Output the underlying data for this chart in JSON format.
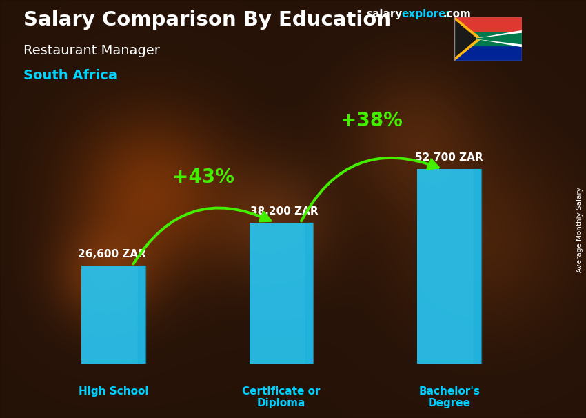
{
  "title_salary": "Salary Comparison By Education",
  "subtitle_job": "Restaurant Manager",
  "subtitle_country": "South Africa",
  "side_label": "Average Monthly Salary",
  "watermark_salary": "salary",
  "watermark_explorer": "explorer",
  "watermark_com": ".com",
  "categories": [
    "High School",
    "Certificate or\nDiploma",
    "Bachelor's\nDegree"
  ],
  "values": [
    26600,
    38200,
    52700
  ],
  "value_labels": [
    "26,600 ZAR",
    "38,200 ZAR",
    "52,700 ZAR"
  ],
  "bar_color": "#29c4f0",
  "bar_edge_color": "#1aafdc",
  "pct_labels": [
    "+43%",
    "+38%"
  ],
  "pct_color": "#aaff00",
  "arrow_color": "#44ee00",
  "bg_overlay_color": "#1a0800",
  "bg_overlay_alpha": 0.38,
  "title_color": "#ffffff",
  "subtitle_job_color": "#ffffff",
  "subtitle_country_color": "#00d4ff",
  "value_label_color": "#ffffff",
  "category_label_color": "#00cfff",
  "watermark_salary_color": "#ffffff",
  "watermark_explorer_color": "#00cfff",
  "watermark_com_color": "#ffffff",
  "side_label_color": "#ffffff",
  "ylim": [
    0,
    68000
  ],
  "bar_positions": [
    1,
    2,
    3
  ],
  "bar_width": 0.38,
  "fig_width": 8.5,
  "fig_height": 6.06,
  "dpi": 100
}
